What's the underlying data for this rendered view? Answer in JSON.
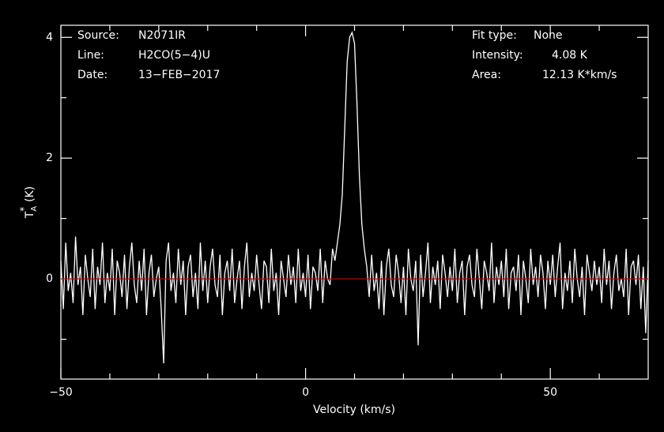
{
  "chart_data": {
    "type": "line",
    "xlabel": "Velocity (km/s)",
    "ylabel": {
      "symbol": "T",
      "subscript": "A",
      "superscript": "*",
      "unit": "(K)"
    },
    "info_left": [
      {
        "label": "Source:",
        "value": "N2071IR"
      },
      {
        "label": "Line:",
        "value": "H2CO(5−4)U"
      },
      {
        "label": "Date:",
        "value": "13−FEB−2017"
      }
    ],
    "info_right": [
      {
        "label": "Fit type:",
        "value": "None"
      },
      {
        "label": "Intensity:",
        "value": "4.08 K"
      },
      {
        "label": "Area:",
        "value": "12.13 K*km/s"
      }
    ],
    "xlim": [
      -50,
      70
    ],
    "ylim": [
      -1.66,
      4.2
    ],
    "xticks": [
      {
        "value": -50,
        "label": "−50"
      },
      0,
      50
    ],
    "xminor": [
      -40,
      -30,
      -20,
      -10,
      10,
      20,
      30,
      40,
      60
    ],
    "yticks": [
      0,
      2,
      4
    ],
    "yminor": [
      -1,
      1,
      3
    ],
    "baseline": {
      "value": 0,
      "color": "#c00000"
    },
    "background": "#000000",
    "color": "#ffffff",
    "series": [
      {
        "color": "#ffffff",
        "x": [
          -50,
          -49.5,
          -49,
          -48.5,
          -48,
          -47.5,
          -47,
          -46.5,
          -46,
          -45.5,
          -45,
          -44.5,
          -44,
          -43.5,
          -43,
          -42.5,
          -42,
          -41.5,
          -41,
          -40.5,
          -40,
          -39.5,
          -39,
          -38.5,
          -38,
          -37.5,
          -37,
          -36.5,
          -36,
          -35.5,
          -35,
          -34.5,
          -34,
          -33.5,
          -33,
          -32.5,
          -32,
          -31.5,
          -31,
          -30.5,
          -30,
          -29.5,
          -29,
          -28.5,
          -28,
          -27.5,
          -27,
          -26.5,
          -26,
          -25.5,
          -25,
          -24.5,
          -24,
          -23.5,
          -23,
          -22.5,
          -22,
          -21.5,
          -21,
          -20.5,
          -20,
          -19.5,
          -19,
          -18.5,
          -18,
          -17.5,
          -17,
          -16.5,
          -16,
          -15.5,
          -15,
          -14.5,
          -14,
          -13.5,
          -13,
          -12.5,
          -12,
          -11.5,
          -11,
          -10.5,
          -10,
          -9.5,
          -9,
          -8.5,
          -8,
          -7.5,
          -7,
          -6.5,
          -6,
          -5.5,
          -5,
          -4.5,
          -4,
          -3.5,
          -3,
          -2.5,
          -2,
          -1.5,
          -1,
          -0.5,
          0,
          0.5,
          1,
          1.5,
          2,
          2.5,
          3,
          3.5,
          4,
          4.5,
          5,
          5.5,
          6,
          6.5,
          7,
          7.5,
          8,
          8.5,
          9,
          9.5,
          10,
          10.5,
          11,
          11.5,
          12,
          12.5,
          13,
          13.5,
          14,
          14.5,
          15,
          15.5,
          16,
          16.5,
          17,
          17.5,
          18,
          18.5,
          19,
          19.5,
          20,
          20.5,
          21,
          21.5,
          22,
          22.5,
          23,
          23.5,
          24,
          24.5,
          25,
          25.5,
          26,
          26.5,
          27,
          27.5,
          28,
          28.5,
          29,
          29.5,
          30,
          30.5,
          31,
          31.5,
          32,
          32.5,
          33,
          33.5,
          34,
          34.5,
          35,
          35.5,
          36,
          36.5,
          37,
          37.5,
          38,
          38.5,
          39,
          39.5,
          40,
          40.5,
          41,
          41.5,
          42,
          42.5,
          43,
          43.5,
          44,
          44.5,
          45,
          45.5,
          46,
          46.5,
          47,
          47.5,
          48,
          48.5,
          49,
          49.5,
          50,
          50.5,
          51,
          51.5,
          52,
          52.5,
          53,
          53.5,
          54,
          54.5,
          55,
          55.5,
          56,
          56.5,
          57,
          57.5,
          58,
          58.5,
          59,
          59.5,
          60,
          60.5,
          61,
          61.5,
          62,
          62.5,
          63,
          63.5,
          64,
          64.5,
          65,
          65.5,
          66,
          66.5,
          67,
          67.5,
          68,
          68.5,
          69,
          69.5,
          70
        ],
        "values": [
          0.3,
          -0.5,
          0.6,
          -0.2,
          0.1,
          -0.4,
          0.7,
          -0.1,
          0.2,
          -0.6,
          0.4,
          0.0,
          -0.3,
          0.5,
          -0.5,
          0.2,
          -0.1,
          0.6,
          -0.4,
          0.1,
          -0.2,
          0.5,
          -0.6,
          0.3,
          0.1,
          -0.3,
          0.4,
          -0.5,
          0.2,
          0.6,
          -0.1,
          -0.4,
          0.3,
          -0.2,
          0.5,
          -0.6,
          0.1,
          0.4,
          -0.3,
          0.0,
          0.2,
          -0.5,
          -1.4,
          0.3,
          0.6,
          -0.2,
          0.1,
          -0.4,
          0.5,
          -0.1,
          0.3,
          -0.6,
          0.2,
          0.4,
          -0.3,
          0.1,
          -0.5,
          0.6,
          -0.2,
          0.3,
          -0.4,
          0.2,
          0.5,
          -0.1,
          -0.3,
          0.4,
          -0.6,
          0.1,
          0.3,
          -0.2,
          0.5,
          -0.4,
          0.0,
          0.3,
          -0.5,
          0.2,
          0.6,
          -0.3,
          0.1,
          -0.2,
          0.4,
          -0.1,
          -0.5,
          0.3,
          0.2,
          -0.4,
          0.5,
          -0.2,
          0.1,
          -0.6,
          0.3,
          0.0,
          -0.3,
          0.4,
          -0.1,
          0.2,
          -0.4,
          0.5,
          -0.2,
          0.1,
          -0.3,
          0.4,
          -0.5,
          0.2,
          0.1,
          -0.2,
          0.5,
          -0.4,
          0.3,
          0.0,
          -0.1,
          0.5,
          0.3,
          0.6,
          0.9,
          1.4,
          2.5,
          3.6,
          4.0,
          4.08,
          3.9,
          2.9,
          1.7,
          0.9,
          0.5,
          0.2,
          -0.3,
          0.4,
          -0.2,
          0.1,
          -0.5,
          0.3,
          -0.6,
          0.2,
          0.5,
          -0.1,
          -0.3,
          0.4,
          0.1,
          -0.4,
          0.2,
          -0.6,
          0.5,
          0.0,
          -0.2,
          0.3,
          -1.1,
          0.4,
          -0.3,
          0.1,
          0.6,
          -0.4,
          0.2,
          -0.1,
          0.3,
          -0.5,
          0.4,
          0.1,
          -0.3,
          0.2,
          -0.2,
          0.5,
          -0.4,
          0.1,
          0.3,
          -0.6,
          0.2,
          0.4,
          -0.1,
          -0.3,
          0.5,
          0.0,
          -0.5,
          0.3,
          0.1,
          -0.2,
          0.6,
          -0.4,
          0.2,
          -0.1,
          0.3,
          -0.3,
          0.5,
          -0.5,
          0.1,
          0.2,
          -0.2,
          0.4,
          -0.6,
          0.3,
          0.0,
          -0.4,
          0.5,
          -0.1,
          0.2,
          -0.3,
          0.4,
          0.1,
          -0.5,
          0.3,
          -0.1,
          0.4,
          -0.3,
          0.2,
          0.6,
          -0.5,
          0.1,
          -0.2,
          0.3,
          -0.4,
          0.5,
          0.0,
          -0.3,
          0.2,
          -0.6,
          0.4,
          0.1,
          -0.2,
          0.3,
          -0.1,
          0.2,
          -0.4,
          0.5,
          -0.1,
          0.3,
          -0.5,
          0.1,
          0.4,
          -0.2,
          0.0,
          -0.3,
          0.5,
          -0.6,
          0.2,
          0.3,
          -0.1,
          0.4,
          -0.5,
          0.2,
          -0.9,
          0.3
        ]
      }
    ]
  }
}
